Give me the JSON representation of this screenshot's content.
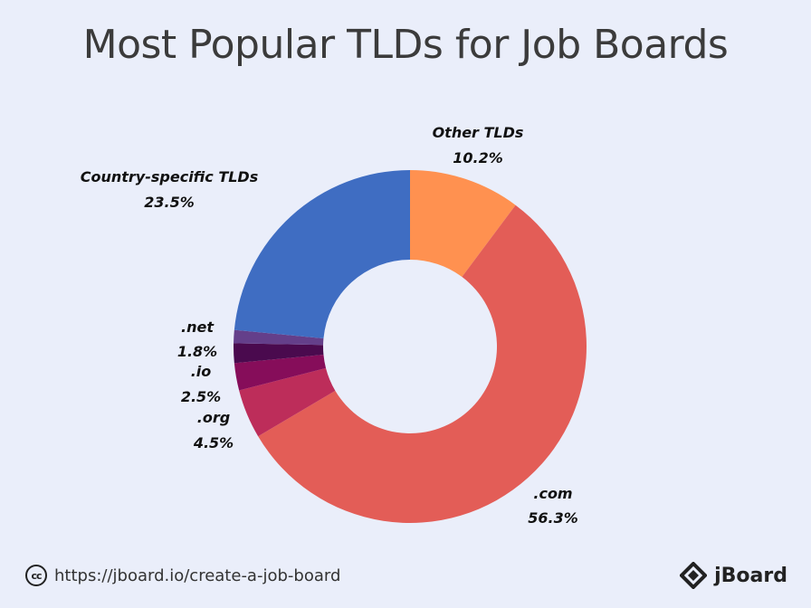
{
  "chart_data": {
    "type": "pie",
    "title": "Most Popular TLDs for Job Boards",
    "categories": [
      "Other TLDs",
      ".com",
      ".org",
      ".io",
      ".net",
      "Country-specific TLDs"
    ],
    "values": [
      10.2,
      56.3,
      4.5,
      2.5,
      1.8,
      23.5
    ],
    "value_labels": [
      "10.2%",
      "56.3%",
      "4.5%",
      "2.5%",
      "1.8%",
      "23.5%"
    ],
    "colors": [
      "#ff9150",
      "#e35d57",
      "#bd2d5a",
      "#860d5a",
      "#4a0a4e",
      "#3f6dc2"
    ],
    "extra_slice": {
      "value": 1.2,
      "color": "#643f8a"
    },
    "donut": true
  },
  "footer": {
    "cc_label": "cc",
    "url": "https://jboard.io/create-a-job-board",
    "brand": "jBoard"
  }
}
